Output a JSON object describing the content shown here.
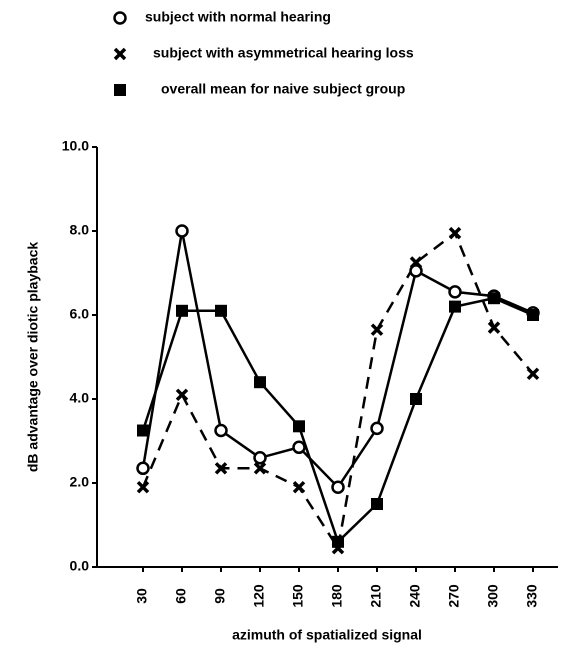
{
  "chart_data": {
    "type": "line",
    "xlabel": "azimuth of spatialized signal",
    "ylabel": "dB advantage over diotic playback",
    "categories": [
      "30",
      "60",
      "90",
      "120",
      "150",
      "180",
      "210",
      "240",
      "270",
      "300",
      "330"
    ],
    "series": [
      {
        "name": "subject with normal hearing",
        "color": "#000000",
        "marker": "circle",
        "dashed": false,
        "values": [
          2.35,
          8.0,
          3.25,
          2.6,
          2.85,
          1.9,
          3.3,
          7.05,
          6.55,
          6.45,
          6.05
        ]
      },
      {
        "name": "subject with asymmetrical hearing loss",
        "color": "#000000",
        "marker": "x",
        "dashed": true,
        "values": [
          1.9,
          4.1,
          2.35,
          2.35,
          1.9,
          0.45,
          5.65,
          7.25,
          7.95,
          5.7,
          4.6
        ]
      },
      {
        "name": "overall mean for naive subject group",
        "color": "#000000",
        "marker": "square",
        "dashed": false,
        "values": [
          3.25,
          6.1,
          6.1,
          4.4,
          3.35,
          0.6,
          1.5,
          4.0,
          6.2,
          6.4,
          6.0
        ]
      }
    ],
    "ylim": [
      0,
      10
    ],
    "yticks": [
      {
        "value": 0,
        "label": "0.0"
      },
      {
        "value": 2,
        "label": "2.0"
      },
      {
        "value": 4,
        "label": "4.0"
      },
      {
        "value": 6,
        "label": "6.0"
      },
      {
        "value": 8,
        "label": "8.0"
      },
      {
        "value": 10,
        "label": "10.0"
      }
    ],
    "legend": "top"
  }
}
